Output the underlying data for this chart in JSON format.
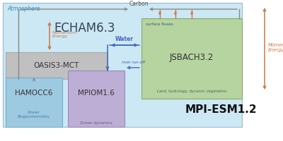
{
  "bg_color": "#cce8f4",
  "oasis_color": "#c0c0c0",
  "hamocc_color": "#9ecae1",
  "mpiom_color": "#bcaed4",
  "jsbach_color": "#b5d4a0",
  "arrow_carbon_color": "#888888",
  "arrow_water_color": "#4466bb",
  "arrow_momentum_color": "#cc7744",
  "atmosphere_label": "Atmosphere",
  "echam_label": "ECHAM6.3",
  "oasis_label": "OASIS3-MCT",
  "hamocc_label": "HAMOCC6",
  "mpiom_label": "MPIOM1.6",
  "jsbach_label": "JSBACH3.2",
  "mpi_esm_label": "MPI-ESM1.2",
  "ocean_bio_label": "Ocean\nBiogeochemistry",
  "ocean_dyn_label": "Ocean dynamics",
  "land_label": "Land, hydrology, dynamic vegetation",
  "carbon_label": "Carbon",
  "water_label": "Water",
  "momentum_left_label": "Momentum\nEnergy",
  "momentum_right_label": "Momentum\nEnergy",
  "surface_fluxes_label": "surface fluxes",
  "river_runoff_label": "river run-off"
}
